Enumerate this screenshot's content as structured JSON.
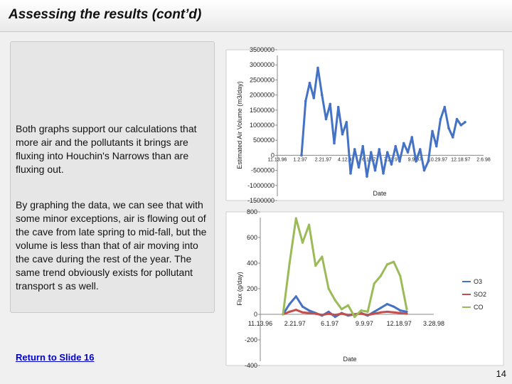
{
  "slide": {
    "title": "Assessing the results (cont’d)",
    "paragraph1": "Both graphs support our calculations that more air and the pollutants it brings are fluxing into Houchin's Narrows than are fluxing out.",
    "paragraph2": "By graphing the data, we can see that with some minor exceptions, air is flowing out of the cave from late spring to mid-fall, but the volume is less than that of air moving into the cave during the rest of the year.  The same trend obviously exists for pollutant transport s as well.",
    "link_text": "Return to Slide 16",
    "page_number": "14"
  },
  "colors": {
    "air_series": "#4472c4",
    "o3": "#4472c4",
    "so2": "#c0504d",
    "co": "#9bbb59"
  },
  "chart_data": [
    {
      "type": "line",
      "title": "",
      "xlabel": "Date",
      "ylabel": "Estimated Air Volume (m3/day)",
      "ylim": [
        -1500000,
        3500000
      ],
      "yticks": [
        3500000,
        3000000,
        2500000,
        2000000,
        1500000,
        1000000,
        500000,
        0,
        -500000,
        -1000000,
        -1500000
      ],
      "ytick_labels": [
        "3500000",
        "3000000",
        "2500000",
        "2000000",
        "1500000",
        "1000000",
        "500000",
        "0",
        "-500000",
        "-1000000",
        "-1500000"
      ],
      "xticks": [
        "11.13.96",
        "1.2.97",
        "2.21.97",
        "4.12.97",
        "6.1.97",
        "7.21.97",
        "9.9.97",
        "10.29.97",
        "12.18.97",
        "2.6.98"
      ],
      "grid": false,
      "legend": "none",
      "series": [
        {
          "values": [
            0,
            1800000,
            2400000,
            1900000,
            2900000,
            2000000,
            1200000,
            1700000,
            400000,
            1600000,
            700000,
            1100000,
            -600000,
            200000,
            -400000,
            300000,
            -700000,
            100000,
            -500000,
            200000,
            -600000,
            100000,
            -300000,
            300000,
            -200000,
            400000,
            100000,
            600000,
            -200000,
            200000,
            -500000,
            -200000,
            800000,
            300000,
            1200000,
            1600000,
            900000,
            600000,
            1200000,
            1000000,
            1100000
          ]
        }
      ]
    },
    {
      "type": "line",
      "title": "",
      "xlabel": "Date",
      "ylabel": "Flux (g/day)",
      "ylim": [
        -400,
        800
      ],
      "yticks": [
        800,
        600,
        400,
        200,
        0,
        -200,
        -400
      ],
      "ytick_labels": [
        "800",
        "600",
        "400",
        "200",
        "0",
        "-200",
        "-400"
      ],
      "xticks": [
        "11.13.96",
        "2.21.97",
        "6.1.97",
        "9.9.97",
        "12.18.97",
        "3.28.98"
      ],
      "grid": false,
      "legend": "right",
      "series": [
        {
          "name": "O3",
          "values": [
            0,
            80,
            140,
            60,
            30,
            10,
            -10,
            20,
            -20,
            10,
            -10,
            0,
            10,
            -10,
            20,
            50,
            80,
            60,
            30,
            20
          ]
        },
        {
          "name": "SO2",
          "values": [
            0,
            20,
            35,
            15,
            10,
            5,
            -5,
            5,
            -5,
            5,
            -5,
            0,
            5,
            -5,
            5,
            15,
            20,
            15,
            10,
            5
          ]
        },
        {
          "name": "CO",
          "values": [
            0,
            400,
            750,
            560,
            700,
            380,
            450,
            200,
            110,
            40,
            70,
            -20,
            30,
            20,
            240,
            300,
            390,
            410,
            300,
            40
          ]
        }
      ]
    }
  ]
}
